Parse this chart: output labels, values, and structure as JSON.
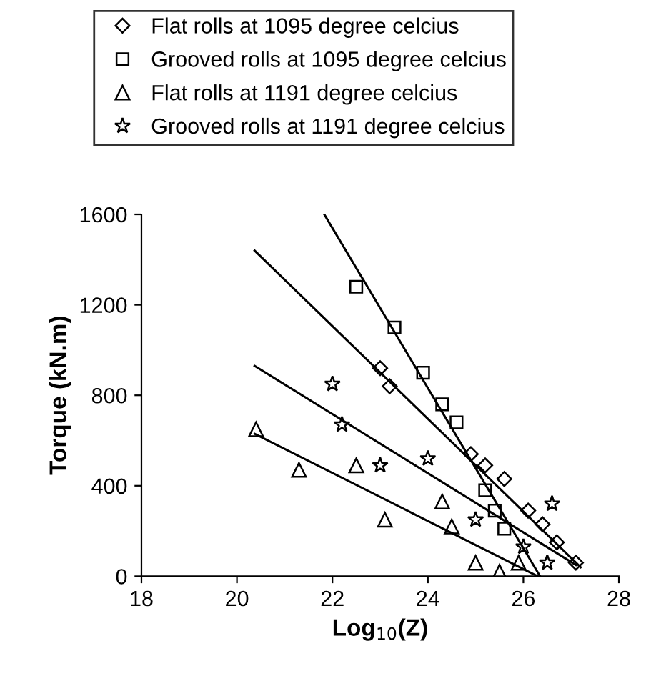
{
  "chart_data": {
    "type": "scatter",
    "xlabel": "Log$_{10}$(Z)",
    "ylabel": "Torque (kN.m)",
    "xlim": [
      18,
      28
    ],
    "xticks": [
      18,
      20,
      22,
      24,
      26,
      28
    ],
    "ylim": [
      0,
      1600
    ],
    "yticks": [
      0,
      400,
      800,
      1200,
      1600
    ],
    "grid": false,
    "legend": "top",
    "series": [
      {
        "name": "Flat rolls at 1095 degree celcius",
        "color": "#000000",
        "marker": "diamond",
        "x": [
          23.0,
          23.2,
          24.9,
          25.2,
          25.6,
          26.1,
          26.4,
          26.7,
          27.1
        ],
        "values": [
          920,
          840,
          540,
          490,
          430,
          290,
          230,
          150,
          60
        ]
      },
      {
        "name": "Grooved rolls at 1095 degree celcius",
        "color": "#000000",
        "marker": "square",
        "x": [
          22.5,
          23.3,
          23.9,
          24.3,
          24.6,
          25.2,
          25.4,
          25.6
        ],
        "values": [
          1280,
          1100,
          900,
          760,
          680,
          380,
          290,
          210
        ]
      },
      {
        "name": "Flat rolls at 1191 degree celcius",
        "color": "#000000",
        "marker": "triangle",
        "x": [
          20.4,
          21.3,
          22.5,
          23.1,
          24.3,
          24.5,
          25.0,
          25.5,
          25.9
        ],
        "values": [
          650,
          470,
          490,
          250,
          330,
          220,
          60,
          20,
          60
        ]
      },
      {
        "name": "Grooved rolls at 1191 degree celcius",
        "color": "#000000",
        "marker": "star",
        "x": [
          22.0,
          22.2,
          23.0,
          24.0,
          25.0,
          26.0,
          26.6,
          26.5
        ],
        "values": [
          850,
          670,
          490,
          520,
          250,
          130,
          320,
          60
        ]
      },
      {
        "type": "line",
        "color": "#000000",
        "marker": "none",
        "line_style": "solid",
        "x": [
          21.83,
          26.35
        ],
        "values": [
          1600,
          0
        ]
      },
      {
        "type": "line",
        "color": "#000000",
        "marker": "none",
        "line_style": "solid",
        "x": [
          20.37,
          27.2
        ],
        "values": [
          1440,
          40
        ]
      },
      {
        "type": "line",
        "color": "#000000",
        "marker": "none",
        "line_style": "solid",
        "x": [
          20.37,
          27.1
        ],
        "values": [
          930,
          50
        ]
      },
      {
        "type": "line",
        "color": "#000000",
        "marker": "none",
        "line_style": "solid",
        "x": [
          20.37,
          26.3
        ],
        "values": [
          630,
          0
        ]
      }
    ]
  }
}
